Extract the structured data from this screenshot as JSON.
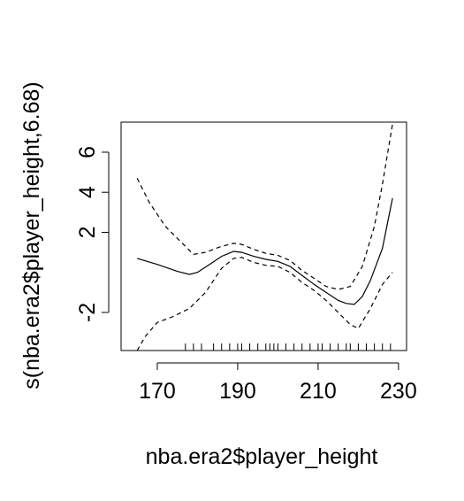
{
  "chart_data": {
    "type": "line",
    "title": "",
    "xlabel": "nba.era2$player_height",
    "ylabel": "s(nba.era2$player_height,6.68)",
    "xlim": [
      161,
      232
    ],
    "ylim": [
      -3.9,
      7.5
    ],
    "x_ticks": [
      170,
      190,
      210,
      230
    ],
    "x_tick_labels": [
      "170",
      "190",
      "210",
      "230"
    ],
    "y_ticks": [
      -2,
      2,
      4,
      6
    ],
    "y_tick_labels": [
      "-2",
      "2",
      "4",
      "6"
    ],
    "grid": false,
    "legend": "none",
    "series": [
      {
        "role": "fit",
        "style": "solid",
        "x": [
          165,
          170,
          175,
          178,
          180,
          183,
          186,
          189,
          191,
          194,
          197,
          200,
          203,
          206,
          209,
          212,
          215,
          217,
          219,
          221,
          223,
          226,
          228.5
        ],
        "y": [
          0.7,
          0.4,
          0.05,
          -0.1,
          0.0,
          0.4,
          0.8,
          1.05,
          1.0,
          0.8,
          0.65,
          0.55,
          0.3,
          -0.15,
          -0.6,
          -1.0,
          -1.4,
          -1.55,
          -1.6,
          -1.2,
          -0.4,
          1.2,
          3.7
        ]
      },
      {
        "role": "upper-band",
        "style": "dashed",
        "x": [
          165,
          168,
          172,
          176,
          179,
          182,
          186,
          189,
          191,
          194,
          197,
          200,
          203,
          206,
          209,
          212,
          215,
          218,
          221,
          224,
          226,
          228.5
        ],
        "y": [
          4.7,
          3.5,
          2.3,
          1.5,
          0.9,
          1.0,
          1.3,
          1.45,
          1.4,
          1.15,
          0.95,
          0.85,
          0.6,
          0.1,
          -0.3,
          -0.7,
          -0.85,
          -0.7,
          0.3,
          2.3,
          4.4,
          7.4
        ]
      },
      {
        "role": "lower-band",
        "style": "dashed",
        "x": [
          165,
          167,
          170,
          174,
          178,
          182,
          186,
          189,
          191,
          194,
          197,
          200,
          203,
          206,
          209,
          212,
          215,
          218,
          220,
          223,
          226,
          228.5
        ],
        "y": [
          -3.9,
          -3.2,
          -2.5,
          -2.2,
          -1.8,
          -1.0,
          0.2,
          0.7,
          0.75,
          0.5,
          0.35,
          0.3,
          0.0,
          -0.5,
          -0.9,
          -1.4,
          -2.0,
          -2.6,
          -2.8,
          -1.8,
          -0.6,
          0.0
        ]
      }
    ],
    "rug_x": [
      177,
      179,
      181,
      184,
      186,
      188,
      190,
      191,
      193,
      195,
      197,
      198,
      199,
      200,
      202,
      204,
      206,
      208,
      210,
      211,
      213,
      215,
      217,
      218,
      220,
      222,
      224,
      226,
      228
    ]
  }
}
